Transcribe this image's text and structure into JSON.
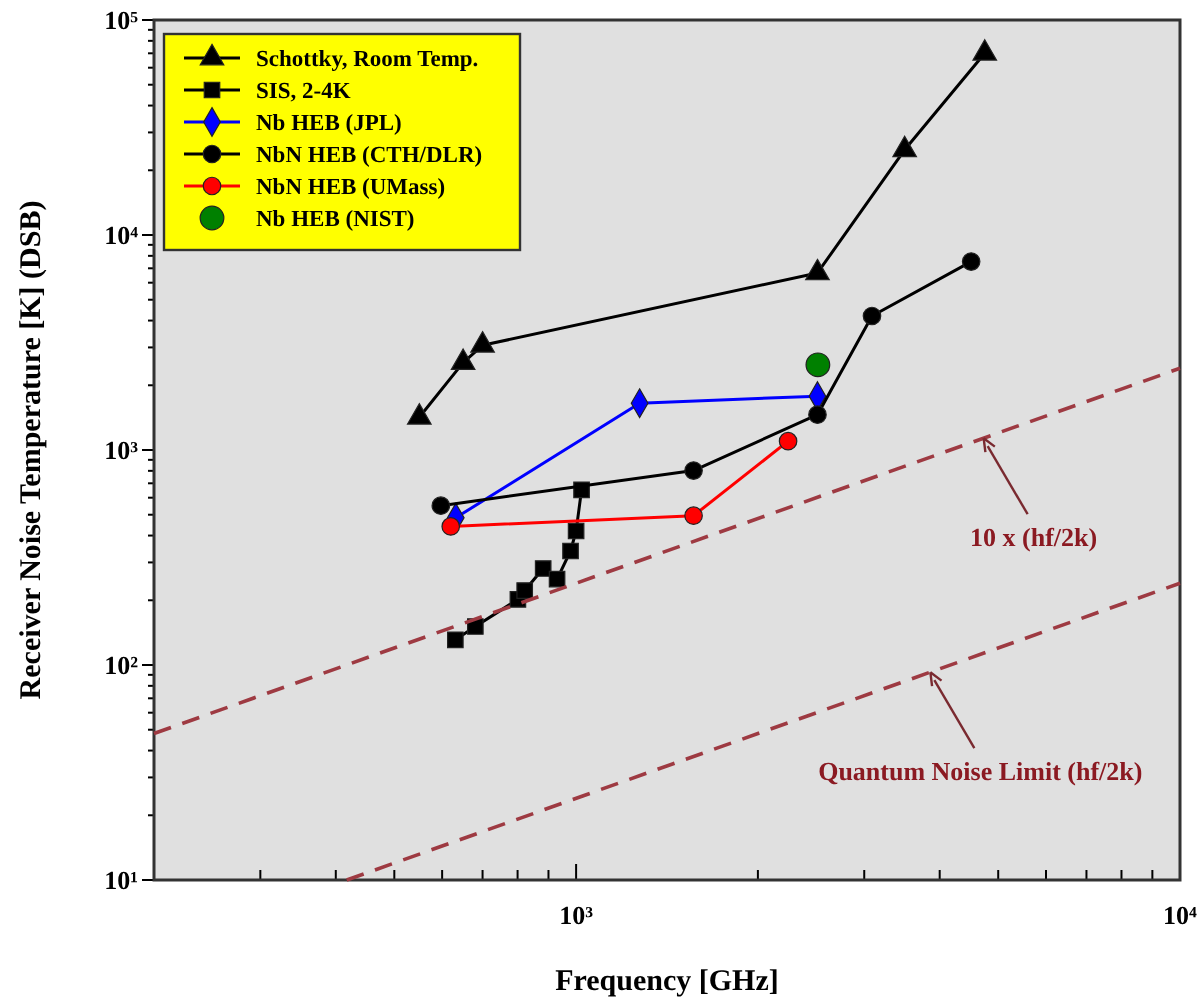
{
  "chart_data": {
    "type": "line",
    "xlabel": "Frequency [GHz]",
    "ylabel": "Receiver Noise Temperature [K] (DSB)",
    "log": "xy",
    "xlim": [
      200,
      10000
    ],
    "ylim": [
      10,
      100000
    ],
    "xticks": [
      {
        "value": 200,
        "label": null
      },
      {
        "value": 300,
        "label": null
      },
      {
        "value": 400,
        "label": null
      },
      {
        "value": 500,
        "label": null
      },
      {
        "value": 600,
        "label": null
      },
      {
        "value": 700,
        "label": null
      },
      {
        "value": 800,
        "label": null
      },
      {
        "value": 900,
        "label": null
      },
      {
        "value": 1000,
        "label": "10³"
      },
      {
        "value": 2000,
        "label": null
      },
      {
        "value": 3000,
        "label": null
      },
      {
        "value": 4000,
        "label": null
      },
      {
        "value": 5000,
        "label": null
      },
      {
        "value": 6000,
        "label": null
      },
      {
        "value": 7000,
        "label": null
      },
      {
        "value": 8000,
        "label": null
      },
      {
        "value": 9000,
        "label": null
      },
      {
        "value": 10000,
        "label": "10⁴"
      }
    ],
    "yticks": [
      {
        "value": 10,
        "label": "10¹"
      },
      {
        "value": 20,
        "label": null
      },
      {
        "value": 30,
        "label": null
      },
      {
        "value": 40,
        "label": null
      },
      {
        "value": 50,
        "label": null
      },
      {
        "value": 60,
        "label": null
      },
      {
        "value": 70,
        "label": null
      },
      {
        "value": 80,
        "label": null
      },
      {
        "value": 90,
        "label": null
      },
      {
        "value": 100,
        "label": "10²"
      },
      {
        "value": 200,
        "label": null
      },
      {
        "value": 300,
        "label": null
      },
      {
        "value": 400,
        "label": null
      },
      {
        "value": 500,
        "label": null
      },
      {
        "value": 600,
        "label": null
      },
      {
        "value": 700,
        "label": null
      },
      {
        "value": 800,
        "label": null
      },
      {
        "value": 900,
        "label": null
      },
      {
        "value": 1000,
        "label": "10³"
      },
      {
        "value": 2000,
        "label": null
      },
      {
        "value": 3000,
        "label": null
      },
      {
        "value": 4000,
        "label": null
      },
      {
        "value": 5000,
        "label": null
      },
      {
        "value": 6000,
        "label": null
      },
      {
        "value": 7000,
        "label": null
      },
      {
        "value": 8000,
        "label": null
      },
      {
        "value": 9000,
        "label": null
      },
      {
        "value": 10000,
        "label": "10⁴"
      },
      {
        "value": 20000,
        "label": null
      },
      {
        "value": 30000,
        "label": null
      },
      {
        "value": 40000,
        "label": null
      },
      {
        "value": 50000,
        "label": null
      },
      {
        "value": 60000,
        "label": null
      },
      {
        "value": 70000,
        "label": null
      },
      {
        "value": 80000,
        "label": null
      },
      {
        "value": 90000,
        "label": null
      },
      {
        "value": 100000,
        "label": "10⁵"
      }
    ],
    "grid": false,
    "legend": "top left",
    "series": [
      {
        "name": "Schottky, Room Temp.",
        "color": "#000000",
        "marker": "triangle",
        "x": [
          550,
          650,
          700,
          2510,
          3500,
          4750
        ],
        "values": [
          1420,
          2550,
          3070,
          6660,
          24900,
          70000
        ]
      },
      {
        "name": "SIS, 2-4K",
        "color": "#000000",
        "marker": "square",
        "x": [
          631,
          681,
          801,
          822,
          882,
          930,
          979,
          1000,
          1021
        ],
        "values": [
          131,
          151,
          202,
          222,
          281,
          251,
          339,
          420,
          653
        ]
      },
      {
        "name": "Nb HEB (JPL)",
        "color": "#0000ff",
        "marker": "diamond",
        "x": [
          632,
          1274,
          2510
        ],
        "values": [
          484,
          1650,
          1780
        ]
      },
      {
        "name": "NbN HEB (CTH/DLR)",
        "color": "#000000",
        "marker": "circle",
        "x": [
          597,
          1565,
          2510,
          3090,
          4510
        ],
        "values": [
          551,
          802,
          1460,
          4200,
          7520
        ]
      },
      {
        "name": "NbN HEB (UMass)",
        "color": "#ff0000",
        "marker": "circle",
        "x": [
          620,
          1565,
          2244
        ],
        "values": [
          441,
          495,
          1099
        ]
      },
      {
        "name": "Nb HEB (NIST)",
        "type": "scatter",
        "color": "#008000",
        "marker": "circle",
        "x": [
          2514
        ],
        "values": [
          2490
        ]
      },
      {
        "color": "#9e3a42",
        "marker": "none",
        "line_style": "dashed",
        "x": [
          200,
          10000
        ],
        "values": [
          48,
          2400
        ]
      },
      {
        "color": "#9e3a42",
        "marker": "none",
        "line_style": "dashed",
        "x": [
          417,
          10000
        ],
        "values": [
          10,
          240
        ]
      }
    ],
    "annotations": [
      {
        "text": "10 x (hf/2k)",
        "x": 4730,
        "y": 1135
      },
      {
        "text": "Quantum Noise Limit (hf/2k)",
        "x": 3860,
        "y": 92.6
      }
    ]
  }
}
